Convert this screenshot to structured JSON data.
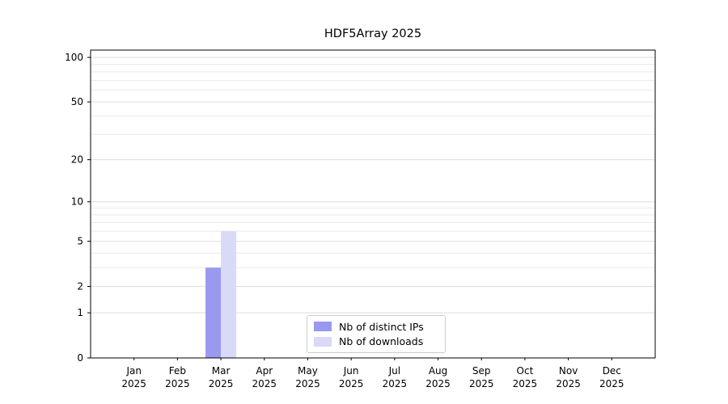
{
  "chart_data": {
    "type": "bar",
    "title": "HDF5Array 2025",
    "categories": [
      "Jan",
      "Feb",
      "Mar",
      "Apr",
      "May",
      "Jun",
      "Jul",
      "Aug",
      "Sep",
      "Oct",
      "Nov",
      "Dec"
    ],
    "year_label": "2025",
    "series": [
      {
        "name": "Nb of distinct IPs",
        "color": "#9999ef",
        "values": [
          0,
          0,
          3,
          0,
          0,
          0,
          0,
          0,
          0,
          0,
          0,
          0
        ]
      },
      {
        "name": "Nb of downloads",
        "color": "#d9d9f8",
        "values": [
          0,
          0,
          6,
          0,
          0,
          0,
          0,
          0,
          0,
          0,
          0,
          0
        ]
      }
    ],
    "y_scale": "log1p",
    "y_ticks": [
      0,
      1,
      2,
      5,
      10,
      20,
      50,
      100
    ],
    "y_minor_gridlines": [
      1,
      2,
      3,
      4,
      5,
      6,
      7,
      8,
      9,
      10,
      20,
      30,
      40,
      50,
      60,
      70,
      80,
      90,
      100
    ],
    "ylim": [
      0,
      112
    ],
    "xlabel": "",
    "ylabel": "",
    "grid": true,
    "legend_position": "lower center (inside plot)"
  }
}
